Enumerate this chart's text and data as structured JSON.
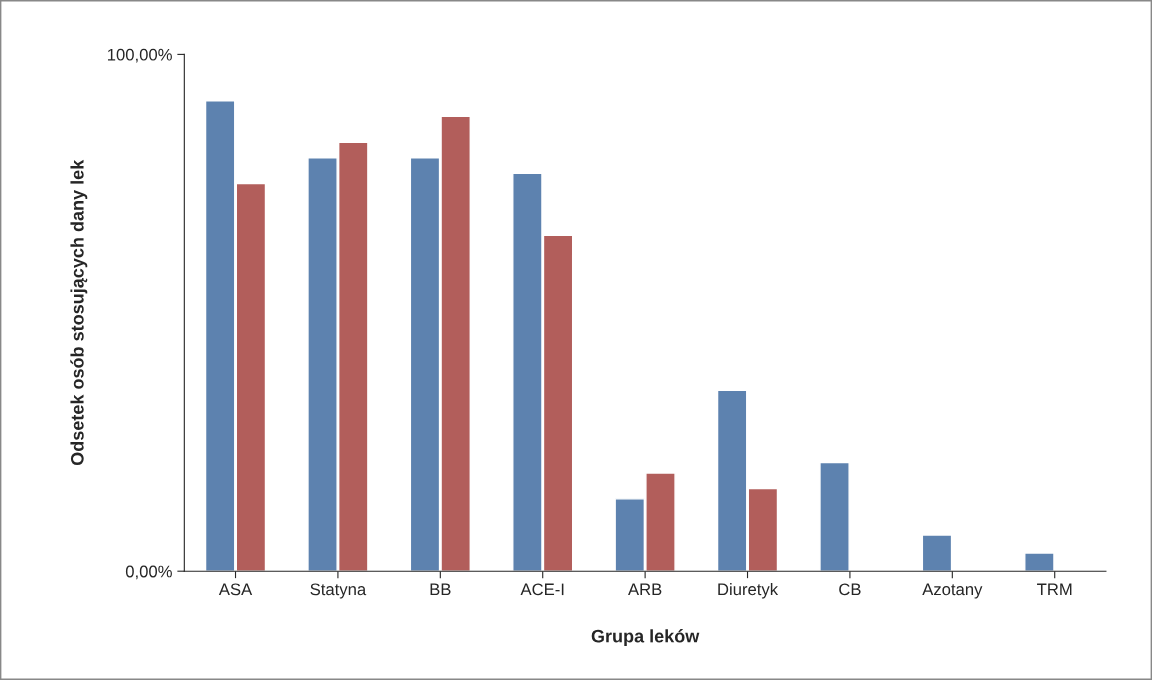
{
  "chart_data": {
    "type": "bar",
    "xlabel": "Grupa leków",
    "ylabel": "Odsetek osób stosujących dany lek",
    "categories": [
      "ASA",
      "Statyna",
      "BB",
      "ACE-I",
      "ARB",
      "Diuretyk",
      "CB",
      "Azotany",
      "TRM"
    ],
    "series": [
      {
        "color": "#4f81bd",
        "values": [
          91,
          80,
          80,
          77,
          14,
          35,
          21,
          7,
          3.5
        ]
      },
      {
        "color": "#c0504d",
        "values": [
          75,
          83,
          88,
          65,
          19,
          16,
          null,
          null,
          null
        ]
      }
    ],
    "ylim": [
      0,
      100
    ],
    "yticks": [
      {
        "value": 0,
        "label": "0,00%"
      },
      {
        "value": 100,
        "label": "100,00%"
      }
    ],
    "grid": false,
    "legend": false
  }
}
